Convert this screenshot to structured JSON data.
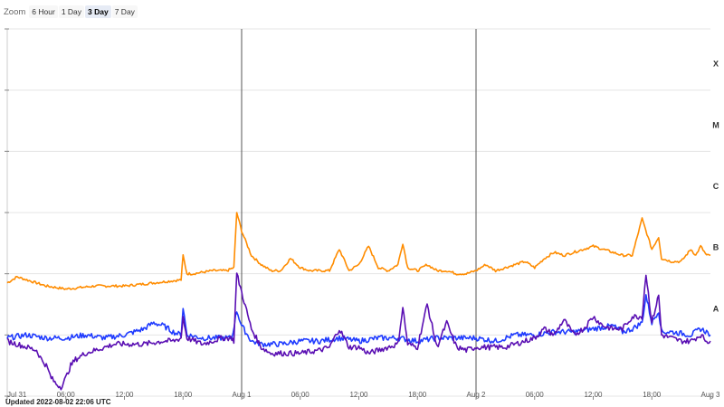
{
  "zoom": {
    "label": "Zoom",
    "options": [
      "6 Hour",
      "1 Day",
      "3 Day",
      "7 Day"
    ],
    "selected": "3 Day"
  },
  "updated": "Updated 2022-08-02 22:06 UTC",
  "colors": {
    "long": "#ff8c00",
    "short_blue": "#1f3bff",
    "short_purple": "#5a0fb3",
    "grid": "#e4e4e4",
    "day_line": "#555555"
  },
  "chart_data": {
    "type": "line",
    "title": "",
    "x_range": [
      "2022-07-31 00:00",
      "2022-08-03 00:00"
    ],
    "x_ticks": [
      "Jul 31",
      "06:00",
      "12:00",
      "18:00",
      "Aug 1",
      "06:00",
      "12:00",
      "18:00",
      "Aug 2",
      "06:00",
      "12:00",
      "18:00",
      "Aug 3"
    ],
    "day_boundaries": [
      "2022-08-01 00:00",
      "2022-08-02 00:00"
    ],
    "y_scale": "log",
    "y_range": [
      "1e-9",
      "1e-3"
    ],
    "class_labels": [
      {
        "label": "A",
        "level": "1e-8"
      },
      {
        "label": "B",
        "level": "1e-7"
      },
      {
        "label": "C",
        "level": "1e-6"
      },
      {
        "label": "M",
        "level": "1e-5"
      },
      {
        "label": "X",
        "level": "1e-4"
      }
    ],
    "series": [
      {
        "color": "#ff8c00",
        "x_hours": [
          0,
          1,
          2,
          4,
          6,
          9,
          12,
          15,
          17.8,
          18,
          18.4,
          19,
          21,
          22.5,
          23.2,
          23.5,
          24,
          25,
          26,
          27,
          28,
          29,
          30,
          31,
          32,
          33,
          34,
          35,
          36,
          37,
          38,
          39,
          40,
          40.5,
          41,
          42,
          43,
          44,
          45,
          46,
          47,
          48,
          49,
          50,
          51,
          52,
          53,
          54,
          55,
          56,
          57,
          58,
          59,
          60,
          61,
          62,
          63,
          64,
          65,
          66,
          66.7,
          67,
          68,
          69,
          70,
          70.5,
          71,
          71.6,
          72
        ],
        "log_flux": [
          -7.15,
          -7.05,
          -7.1,
          -7.2,
          -7.25,
          -7.2,
          -7.2,
          -7.15,
          -7.1,
          -6.7,
          -7.0,
          -7.0,
          -6.95,
          -6.95,
          -6.9,
          -6.0,
          -6.3,
          -6.7,
          -6.85,
          -6.95,
          -6.95,
          -6.75,
          -6.9,
          -6.95,
          -6.95,
          -6.95,
          -6.6,
          -6.95,
          -6.85,
          -6.55,
          -6.9,
          -6.95,
          -6.85,
          -6.5,
          -6.9,
          -6.95,
          -6.85,
          -6.95,
          -6.95,
          -7.0,
          -7.0,
          -6.95,
          -6.85,
          -6.95,
          -6.9,
          -6.85,
          -6.8,
          -6.9,
          -6.75,
          -6.65,
          -6.7,
          -6.65,
          -6.6,
          -6.55,
          -6.6,
          -6.65,
          -6.7,
          -6.7,
          -6.1,
          -6.6,
          -6.4,
          -6.75,
          -6.8,
          -6.8,
          -6.6,
          -6.7,
          -6.55,
          -6.7,
          -6.7
        ]
      },
      {
        "color": "#1f3bff",
        "x_hours": [
          0,
          2,
          4,
          6,
          8,
          10,
          12,
          13,
          14,
          15,
          16,
          17,
          17.8,
          18,
          18.4,
          20,
          22,
          23,
          23.5,
          24,
          25,
          26,
          28,
          30,
          32,
          34,
          36,
          38,
          40,
          42,
          44,
          46,
          48,
          50,
          52,
          54,
          56,
          58,
          60,
          62,
          63,
          64,
          65,
          65.4,
          66,
          66.7,
          67,
          68,
          70,
          71,
          71.6,
          72
        ],
        "log_flux": [
          -8.05,
          -8.0,
          -8.05,
          -8.05,
          -8.0,
          -8.05,
          -8.0,
          -7.95,
          -7.9,
          -7.8,
          -7.85,
          -7.95,
          -8.0,
          -7.55,
          -8.0,
          -8.05,
          -8.05,
          -8.05,
          -7.6,
          -7.85,
          -8.1,
          -8.15,
          -8.15,
          -8.1,
          -8.1,
          -8.05,
          -8.1,
          -8.05,
          -8.05,
          -8.1,
          -8.05,
          -8.05,
          -8.05,
          -8.1,
          -8.0,
          -8.0,
          -7.95,
          -7.95,
          -7.9,
          -7.85,
          -7.95,
          -7.9,
          -7.8,
          -7.35,
          -7.8,
          -7.6,
          -7.95,
          -7.95,
          -8.0,
          -7.9,
          -7.95,
          -8.0
        ]
      },
      {
        "color": "#5a0fb3",
        "x_hours": [
          0,
          1,
          2,
          3,
          3.5,
          4,
          4.5,
          5,
          5.5,
          6,
          6.5,
          7,
          7.5,
          8,
          9,
          10,
          11,
          12,
          14,
          16,
          17,
          17.8,
          18,
          18.4,
          20,
          22,
          23,
          23.2,
          23.5,
          24,
          25,
          26,
          27,
          28,
          30,
          32,
          33,
          34,
          35,
          36,
          37,
          38,
          40,
          40.5,
          41,
          42,
          43,
          44,
          45,
          46,
          47,
          48,
          49,
          50,
          51,
          52,
          53,
          54,
          55,
          56,
          57,
          58,
          59,
          60,
          61,
          62,
          63,
          64,
          65,
          65.4,
          66,
          66.7,
          67,
          68,
          69,
          70,
          71,
          71.6,
          72
        ],
        "log_flux": [
          -8.1,
          -8.15,
          -8.2,
          -8.25,
          -8.4,
          -8.5,
          -8.7,
          -8.8,
          -8.85,
          -8.7,
          -8.5,
          -8.4,
          -8.35,
          -8.3,
          -8.25,
          -8.2,
          -8.15,
          -8.15,
          -8.15,
          -8.1,
          -8.1,
          -8.05,
          -7.7,
          -8.05,
          -8.15,
          -8.05,
          -8.05,
          -8.1,
          -7.0,
          -7.3,
          -7.9,
          -8.2,
          -8.3,
          -8.3,
          -8.3,
          -8.25,
          -8.2,
          -7.9,
          -8.2,
          -8.2,
          -8.3,
          -8.25,
          -8.15,
          -7.55,
          -8.15,
          -8.2,
          -7.5,
          -8.2,
          -7.8,
          -8.2,
          -8.25,
          -8.2,
          -8.2,
          -8.2,
          -8.2,
          -8.15,
          -8.1,
          -8.05,
          -7.9,
          -8.0,
          -7.75,
          -8.0,
          -7.9,
          -7.7,
          -7.85,
          -7.9,
          -7.9,
          -7.7,
          -7.7,
          -7.0,
          -7.8,
          -7.35,
          -8.0,
          -8.05,
          -8.1,
          -8.1,
          -8.0,
          -8.1,
          -8.1
        ]
      }
    ]
  }
}
